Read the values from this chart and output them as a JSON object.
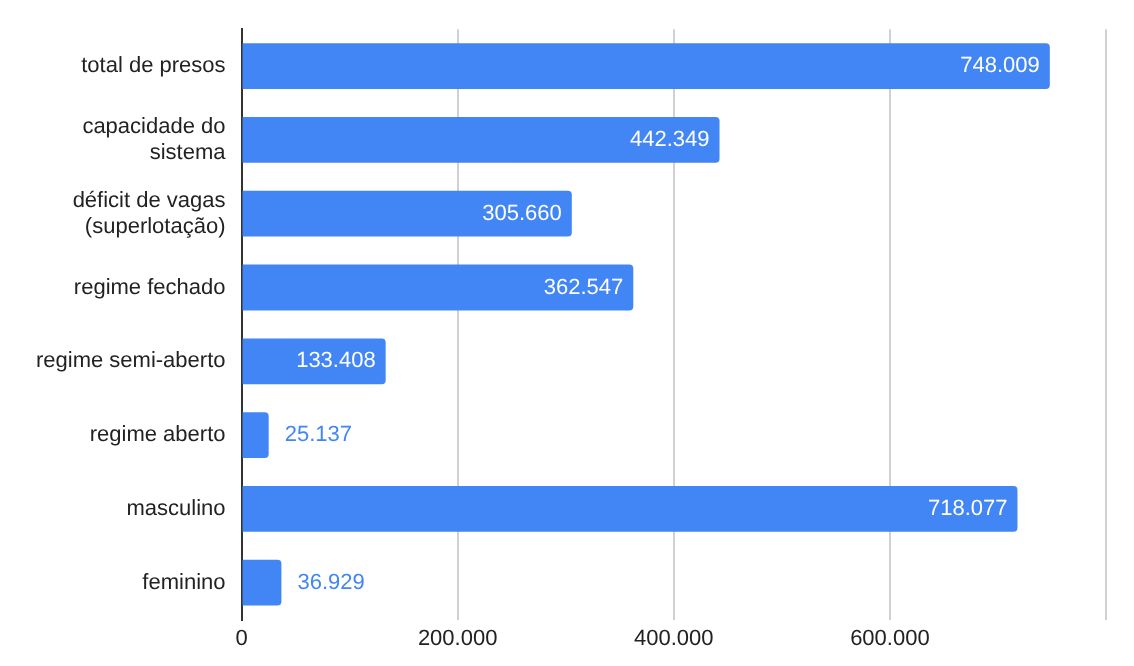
{
  "chart_data": {
    "type": "bar",
    "orientation": "horizontal",
    "categories": [
      "total de presos",
      "capacidade do sistema",
      "déficit de vagas (superlotação)",
      "regime fechado",
      "regime semi-aberto",
      "regime aberto",
      "masculino",
      "feminino"
    ],
    "values": [
      748009,
      442349,
      305660,
      362547,
      133408,
      25137,
      718077,
      36929
    ],
    "value_labels": [
      "748.009",
      "442.349",
      "305.660",
      "362.547",
      "133.408",
      "25.137",
      "718.077",
      "36.929"
    ],
    "color": "#4285f4",
    "xlim": [
      0,
      800000
    ],
    "xticks": [
      0,
      {
        "value": 200000,
        "label": "200.000"
      },
      {
        "value": 400000,
        "label": "400.000"
      },
      {
        "value": 600000,
        "label": "600.000"
      },
      {
        "value": 800000,
        "label": null
      }
    ],
    "grid": "x",
    "legend": false
  }
}
